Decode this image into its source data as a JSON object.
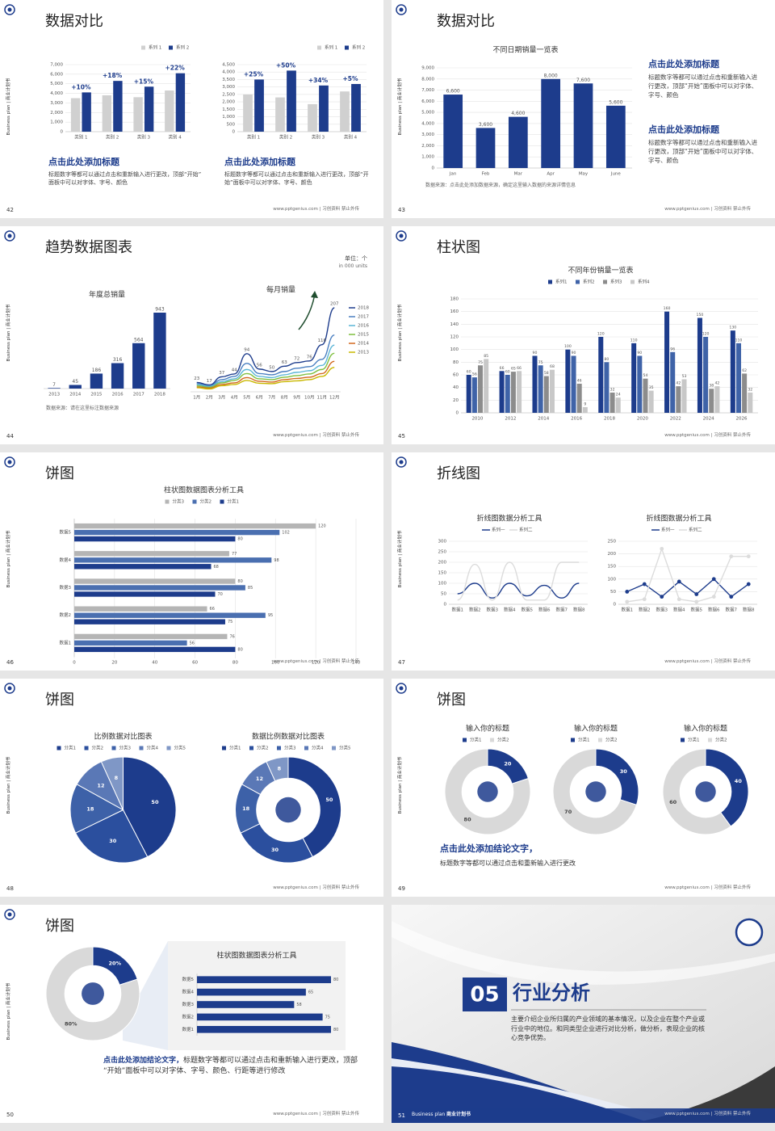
{
  "slides": [
    {
      "title": "数据对比",
      "page": "42",
      "side": "Business plan | 商业计划书",
      "footer": "www.pptgenius.com | 习创资料 禁止外传",
      "texts": [
        "点击此处添加标题",
        "标题数字等都可以通过点击和重新输入进行更改，顶部“开始”面板中可以对字体、字号、颜色",
        "点击此处添加标题",
        "标题数字等都可以通过点击和重新输入进行更改，顶部“开始”面板中可以对字体、字号、颜色"
      ],
      "charts": [
        {
          "type": "bar",
          "categories": [
            "类别 1",
            "类别 2",
            "类别 3",
            "类别 4"
          ],
          "series": [
            {
              "name": "系列 1",
              "color": "#d0d0d0",
              "values": [
                3500,
                3800,
                3600,
                4300
              ]
            },
            {
              "name": "系列 2",
              "color": "#1d3c8c",
              "values": [
                4100,
                5300,
                4700,
                6100
              ]
            }
          ],
          "annotations": [
            "+10%",
            "+18%",
            "+15%",
            "+22%"
          ],
          "ylim": [
            0,
            7000
          ],
          "yticks": [
            0,
            {
              "value": 1000,
              "label": "1,000"
            },
            {
              "value": 2000,
              "label": "2,000"
            },
            {
              "value": 3000,
              "label": "3,000"
            },
            {
              "value": 4000,
              "label": "4,000"
            },
            {
              "value": 5000,
              "label": "5,000"
            },
            {
              "value": 6000,
              "label": "6,000"
            },
            {
              "value": 7000,
              "label": "7,000"
            }
          ],
          "legend": "top-right",
          "grid": true
        },
        {
          "type": "bar",
          "categories": [
            "类别 1",
            "类别 2",
            "类别 3",
            "类别 4"
          ],
          "series": [
            {
              "name": "系列 1",
              "color": "#d0d0d0",
              "values": [
                2500,
                2300,
                1850,
                2700
              ]
            },
            {
              "name": "系列 2",
              "color": "#1d3c8c",
              "values": [
                3500,
                4100,
                3100,
                3200
              ]
            }
          ],
          "annotations": [
            "+25%",
            "+50%",
            "+34%",
            "+5%"
          ],
          "ylim": [
            0,
            4500
          ],
          "yticks": [
            0,
            500,
            {
              "value": 1000,
              "label": "1,000"
            },
            {
              "value": 1500,
              "label": "1,500"
            },
            {
              "value": 2000,
              "label": "2,000"
            },
            {
              "value": 2500,
              "label": "2,500"
            },
            {
              "value": 3000,
              "label": "3,000"
            },
            {
              "value": 3500,
              "label": "3,500"
            },
            {
              "value": 4000,
              "label": "4,000"
            },
            {
              "value": 4500,
              "label": "4,500"
            }
          ],
          "legend": "top-right",
          "grid": true
        }
      ]
    },
    {
      "title": "数据对比",
      "page": "43",
      "side": "Business plan | 商业计划书",
      "footer": "www.pptgenius.com | 习创资料 禁止外传",
      "texts": [
        "数据来源：点击此处添加数据来源，确定这里输入数据的来源详情信息",
        "点击此处添加标题",
        "标题数字等都可以通过点击和重新输入进行更改，顶部“开始”面板中可以对字体、字号、颜色",
        "点击此处添加标题",
        "标题数字等都可以通过点击和重新输入进行更改，顶部“开始”面板中可以对字体、字号、颜色"
      ],
      "charts": [
        {
          "type": "bar",
          "title": "不同日期销量一览表",
          "categories": [
            "Jan",
            "Feb",
            "Mar",
            "Apr",
            "May",
            "June"
          ],
          "values": [
            6600,
            3600,
            4600,
            8000,
            7600,
            5600
          ],
          "value_labels": [
            "6,600",
            "3,600",
            "4,600",
            "8,000",
            "7,600",
            "5,600"
          ],
          "show_values": true,
          "color": "#1d3c8c",
          "ylim": [
            0,
            9000
          ],
          "yticks": [
            0,
            {
              "value": 1000,
              "label": "1,000"
            },
            {
              "value": 2000,
              "label": "2,000"
            },
            {
              "value": 3000,
              "label": "3,000"
            },
            {
              "value": 4000,
              "label": "4,000"
            },
            {
              "value": 5000,
              "label": "5,000"
            },
            {
              "value": 6000,
              "label": "6,000"
            },
            {
              "value": 7000,
              "label": "7,000"
            },
            {
              "value": 8000,
              "label": "8,000"
            },
            {
              "value": 9000,
              "label": "9,000"
            }
          ],
          "grid": true
        }
      ]
    },
    {
      "title": "趋势数据图表",
      "page": "44",
      "side": "Business plan | 商业计划书",
      "footer": "www.pptgenius.com | 习创资料 禁止外传",
      "texts": [
        "单位：个",
        "in 000 units",
        "数据来源：请在这里标注数据来源"
      ],
      "charts": [
        {
          "type": "bar",
          "title": "年度总销量",
          "categories": [
            "2013",
            "2014",
            "2015",
            "2016",
            "2017",
            "2018"
          ],
          "values": [
            7,
            45,
            186,
            316,
            564,
            943
          ],
          "show_values": true,
          "color": "#1d3c8c"
        },
        {
          "type": "line",
          "title": "每月销量",
          "smooth": true,
          "legend": "right",
          "categories": [
            "1月",
            "2月",
            "3月",
            "4月",
            "5月",
            "6月",
            "7月",
            "8月",
            "9月",
            "10月",
            "11月",
            "12月"
          ],
          "series": [
            {
              "name": "2018",
              "color": "#1d3c8c",
              "show_values": true,
              "values": [
                23,
                17,
                37,
                44,
                94,
                56,
                50,
                63,
                72,
                76,
                116,
                207
              ]
            },
            {
              "name": "2017",
              "color": "#4a7fc1",
              "values": [
                20,
                15,
                30,
                38,
                70,
                45,
                42,
                50,
                58,
                62,
                80,
                140
              ]
            },
            {
              "name": "2016",
              "color": "#5bb5d6",
              "values": [
                18,
                13,
                25,
                32,
                55,
                38,
                35,
                42,
                48,
                52,
                65,
                115
              ]
            },
            {
              "name": "2015",
              "color": "#7fbf3f",
              "values": [
                15,
                11,
                22,
                28,
                45,
                32,
                30,
                36,
                40,
                44,
                55,
                95
              ]
            },
            {
              "name": "2014",
              "color": "#d2691e",
              "values": [
                12,
                9,
                18,
                22,
                35,
                26,
                24,
                30,
                33,
                36,
                45,
                75
              ]
            },
            {
              "name": "2013",
              "color": "#c9b800",
              "values": [
                10,
                7,
                15,
                18,
                28,
                21,
                20,
                25,
                27,
                30,
                38,
                60
              ]
            }
          ]
        }
      ]
    },
    {
      "title": "柱状图",
      "page": "45",
      "side": "Business plan | 商业计划书",
      "footer": "www.pptgenius.com | 习创资料 禁止外传",
      "charts": [
        {
          "type": "bar",
          "title": "不同年份销量一览表",
          "legend": "top",
          "grid": true,
          "categories": [
            "2010",
            "2012",
            "2014",
            "2016",
            "2018",
            "2020",
            "2022",
            "2024",
            "2026"
          ],
          "series": [
            {
              "name": "系列1",
              "color": "#1d3c8c",
              "show_values": true,
              "values": [
                60,
                66,
                90,
                100,
                120,
                110,
                160,
                150,
                130
              ]
            },
            {
              "name": "系列2",
              "color": "#3f63a8",
              "show_values": true,
              "values": [
                56,
                60,
                75,
                90,
                80,
                90,
                96,
                120,
                110
              ]
            },
            {
              "name": "系列3",
              "color": "#8c8c8c",
              "show_values": true,
              "values": [
                75,
                65,
                58,
                46,
                32,
                54,
                42,
                38,
                62
              ]
            },
            {
              "name": "系列4",
              "color": "#c8c8c8",
              "show_values": true,
              "values": [
                85,
                66,
                68,
                9,
                24,
                35,
                53,
                42,
                32
              ]
            }
          ],
          "ylim": [
            0,
            180
          ],
          "yticks": [
            0,
            20,
            40,
            60,
            80,
            100,
            120,
            140,
            160,
            180
          ]
        }
      ]
    },
    {
      "title": "饼图",
      "page": "46",
      "side": "Business plan | 商业计划书",
      "footer": "www.pptgenius.com | 习创资料 禁止外传",
      "charts": [
        {
          "type": "hbar",
          "title": "柱状图数据图表分析工具",
          "legend": "top",
          "grid": true,
          "categories": [
            "数据1",
            "数据2",
            "数据3",
            "数据4",
            "数据5"
          ],
          "series": [
            {
              "name": "分类3",
              "color": "#b5b5b5",
              "show_values": true,
              "values": [
                76,
                66,
                80,
                77,
                120
              ]
            },
            {
              "name": "分类2",
              "color": "#4a6fb0",
              "show_values": true,
              "values": [
                56,
                95,
                85,
                98,
                102
              ]
            },
            {
              "name": "分类1",
              "color": "#1d3c8c",
              "show_values": true,
              "values": [
                80,
                75,
                70,
                68,
                80
              ]
            }
          ],
          "xlim": [
            0,
            140
          ],
          "xticks": [
            0,
            20,
            40,
            60,
            80,
            100,
            120,
            140
          ]
        }
      ]
    },
    {
      "title": "折线图",
      "page": "47",
      "side": "Business plan | 商业计划书",
      "footer": "www.pptgenius.com | 习创资料 禁止外传",
      "charts": [
        {
          "type": "line",
          "title": "折线图数据分析工具",
          "smooth": true,
          "legend": "top",
          "grid": true,
          "categories": [
            "数据1",
            "数据2",
            "数据3",
            "数据4",
            "数据5",
            "数据6",
            "数据7",
            "数据8"
          ],
          "series": [
            {
              "name": "系列一",
              "color": "#1d3c8c",
              "values": [
                50,
                100,
                30,
                100,
                40,
                90,
                30,
                100
              ]
            },
            {
              "name": "系列二",
              "color": "#dcdcdc",
              "values": [
                20,
                190,
                20,
                200,
                20,
                20,
                200,
                200
              ]
            }
          ],
          "ylim": [
            0,
            300
          ],
          "yticks": [
            0,
            50,
            100,
            150,
            200,
            250,
            300
          ]
        },
        {
          "type": "line",
          "title": "折线图数据分析工具",
          "markers": true,
          "legend": "top",
          "grid": true,
          "categories": [
            "数据1",
            "数据2",
            "数据3",
            "数据4",
            "数据5",
            "数据6",
            "数据7",
            "数据8"
          ],
          "series": [
            {
              "name": "系列一",
              "color": "#1d3c8c",
              "values": [
                50,
                80,
                30,
                90,
                40,
                100,
                30,
                80
              ]
            },
            {
              "name": "系列二",
              "color": "#dcdcdc",
              "values": [
                10,
                20,
                220,
                20,
                10,
                30,
                190,
                190
              ]
            }
          ],
          "ylim": [
            0,
            250
          ],
          "yticks": [
            0,
            50,
            100,
            150,
            200,
            250
          ]
        }
      ]
    },
    {
      "title": "饼图",
      "page": "48",
      "side": "Business plan | 商业计划书",
      "footer": "www.pptgenius.com | 习创资料 禁止外传",
      "charts": [
        {
          "type": "pie",
          "title": "比例数据对比图表",
          "legend": "top",
          "show_values": true,
          "categories": [
            "分类1",
            "分类2",
            "分类3",
            "分类4",
            "分类5"
          ],
          "values": [
            50,
            30,
            18,
            12,
            8
          ],
          "colors": [
            "#1d3c8c",
            "#2b4f9e",
            "#3d61a8",
            "#5a78b6",
            "#7f97c6"
          ]
        },
        {
          "type": "donut",
          "title": "数据比例数据对比图表",
          "legend": "top",
          "show_values": true,
          "categories": [
            "分类1",
            "分类2",
            "分类3",
            "分类4",
            "分类5"
          ],
          "values": [
            50,
            30,
            18,
            12,
            8
          ],
          "colors": [
            "#1d3c8c",
            "#2b4f9e",
            "#3d61a8",
            "#5a78b6",
            "#7f97c6"
          ]
        }
      ]
    },
    {
      "title": "饼图",
      "page": "49",
      "side": "Business plan | 商业计划书",
      "footer": "www.pptgenius.com | 习创资料 禁止外传",
      "texts": [
        "点击此处添加结论文字，",
        "标题数字等都可以通过点击和重新输入进行更改"
      ],
      "charts": [
        {
          "type": "donut",
          "title": "输入你的标题",
          "legend": "top",
          "show_values": true,
          "categories": [
            "分类1",
            "分类2"
          ],
          "values": [
            20,
            80
          ],
          "colors": [
            "#1d3c8c",
            "#d9d9d9"
          ]
        },
        {
          "type": "donut",
          "title": "输入你的标题",
          "legend": "top",
          "show_values": true,
          "categories": [
            "分类1",
            "分类2"
          ],
          "values": [
            30,
            70
          ],
          "colors": [
            "#1d3c8c",
            "#d9d9d9"
          ]
        },
        {
          "type": "donut",
          "title": "输入你的标题",
          "legend": "top",
          "show_values": true,
          "categories": [
            "分类1",
            "分类2"
          ],
          "values": [
            40,
            60
          ],
          "colors": [
            "#1d3c8c",
            "#d9d9d9"
          ]
        }
      ]
    },
    {
      "title": "饼图",
      "page": "50",
      "side": "Business plan | 商业计划书",
      "footer": "www.pptgenius.com | 习创资料 禁止外传",
      "texts": [
        "点击此处添加结论文字，",
        "标题数字等都可以通过点击和重新输入进行更改，顶部“开始”面板中可以对字体、字号、颜色、行距等进行修改"
      ],
      "charts": [
        {
          "type": "donut",
          "show_values": true,
          "values": [
            20,
            80
          ],
          "value_labels": [
            "20%",
            "80%"
          ],
          "colors": [
            "#1d3c8c",
            "#d9d9d9"
          ]
        },
        {
          "type": "hbar",
          "title": "柱状图数据图表分析工具",
          "show_values": true,
          "color": "#1d3c8c",
          "categories": [
            "数据1",
            "数据2",
            "数据3",
            "数据4",
            "数据5"
          ],
          "values": [
            80,
            75,
            58,
            65,
            80
          ]
        }
      ]
    },
    {
      "number": "05",
      "heading": "行业分析",
      "text": "主要介绍企业所归属的产业领域的基本情况，以及企业在整个产业或行业中的地位。和同类型企业进行对比分析，做分析，表现企业的核心竞争优势。",
      "page": "51",
      "label_en": "Business plan",
      "label_cn": "商业计划书",
      "footer": "www.pptgenius.com | 习创资料 禁止外传"
    }
  ]
}
